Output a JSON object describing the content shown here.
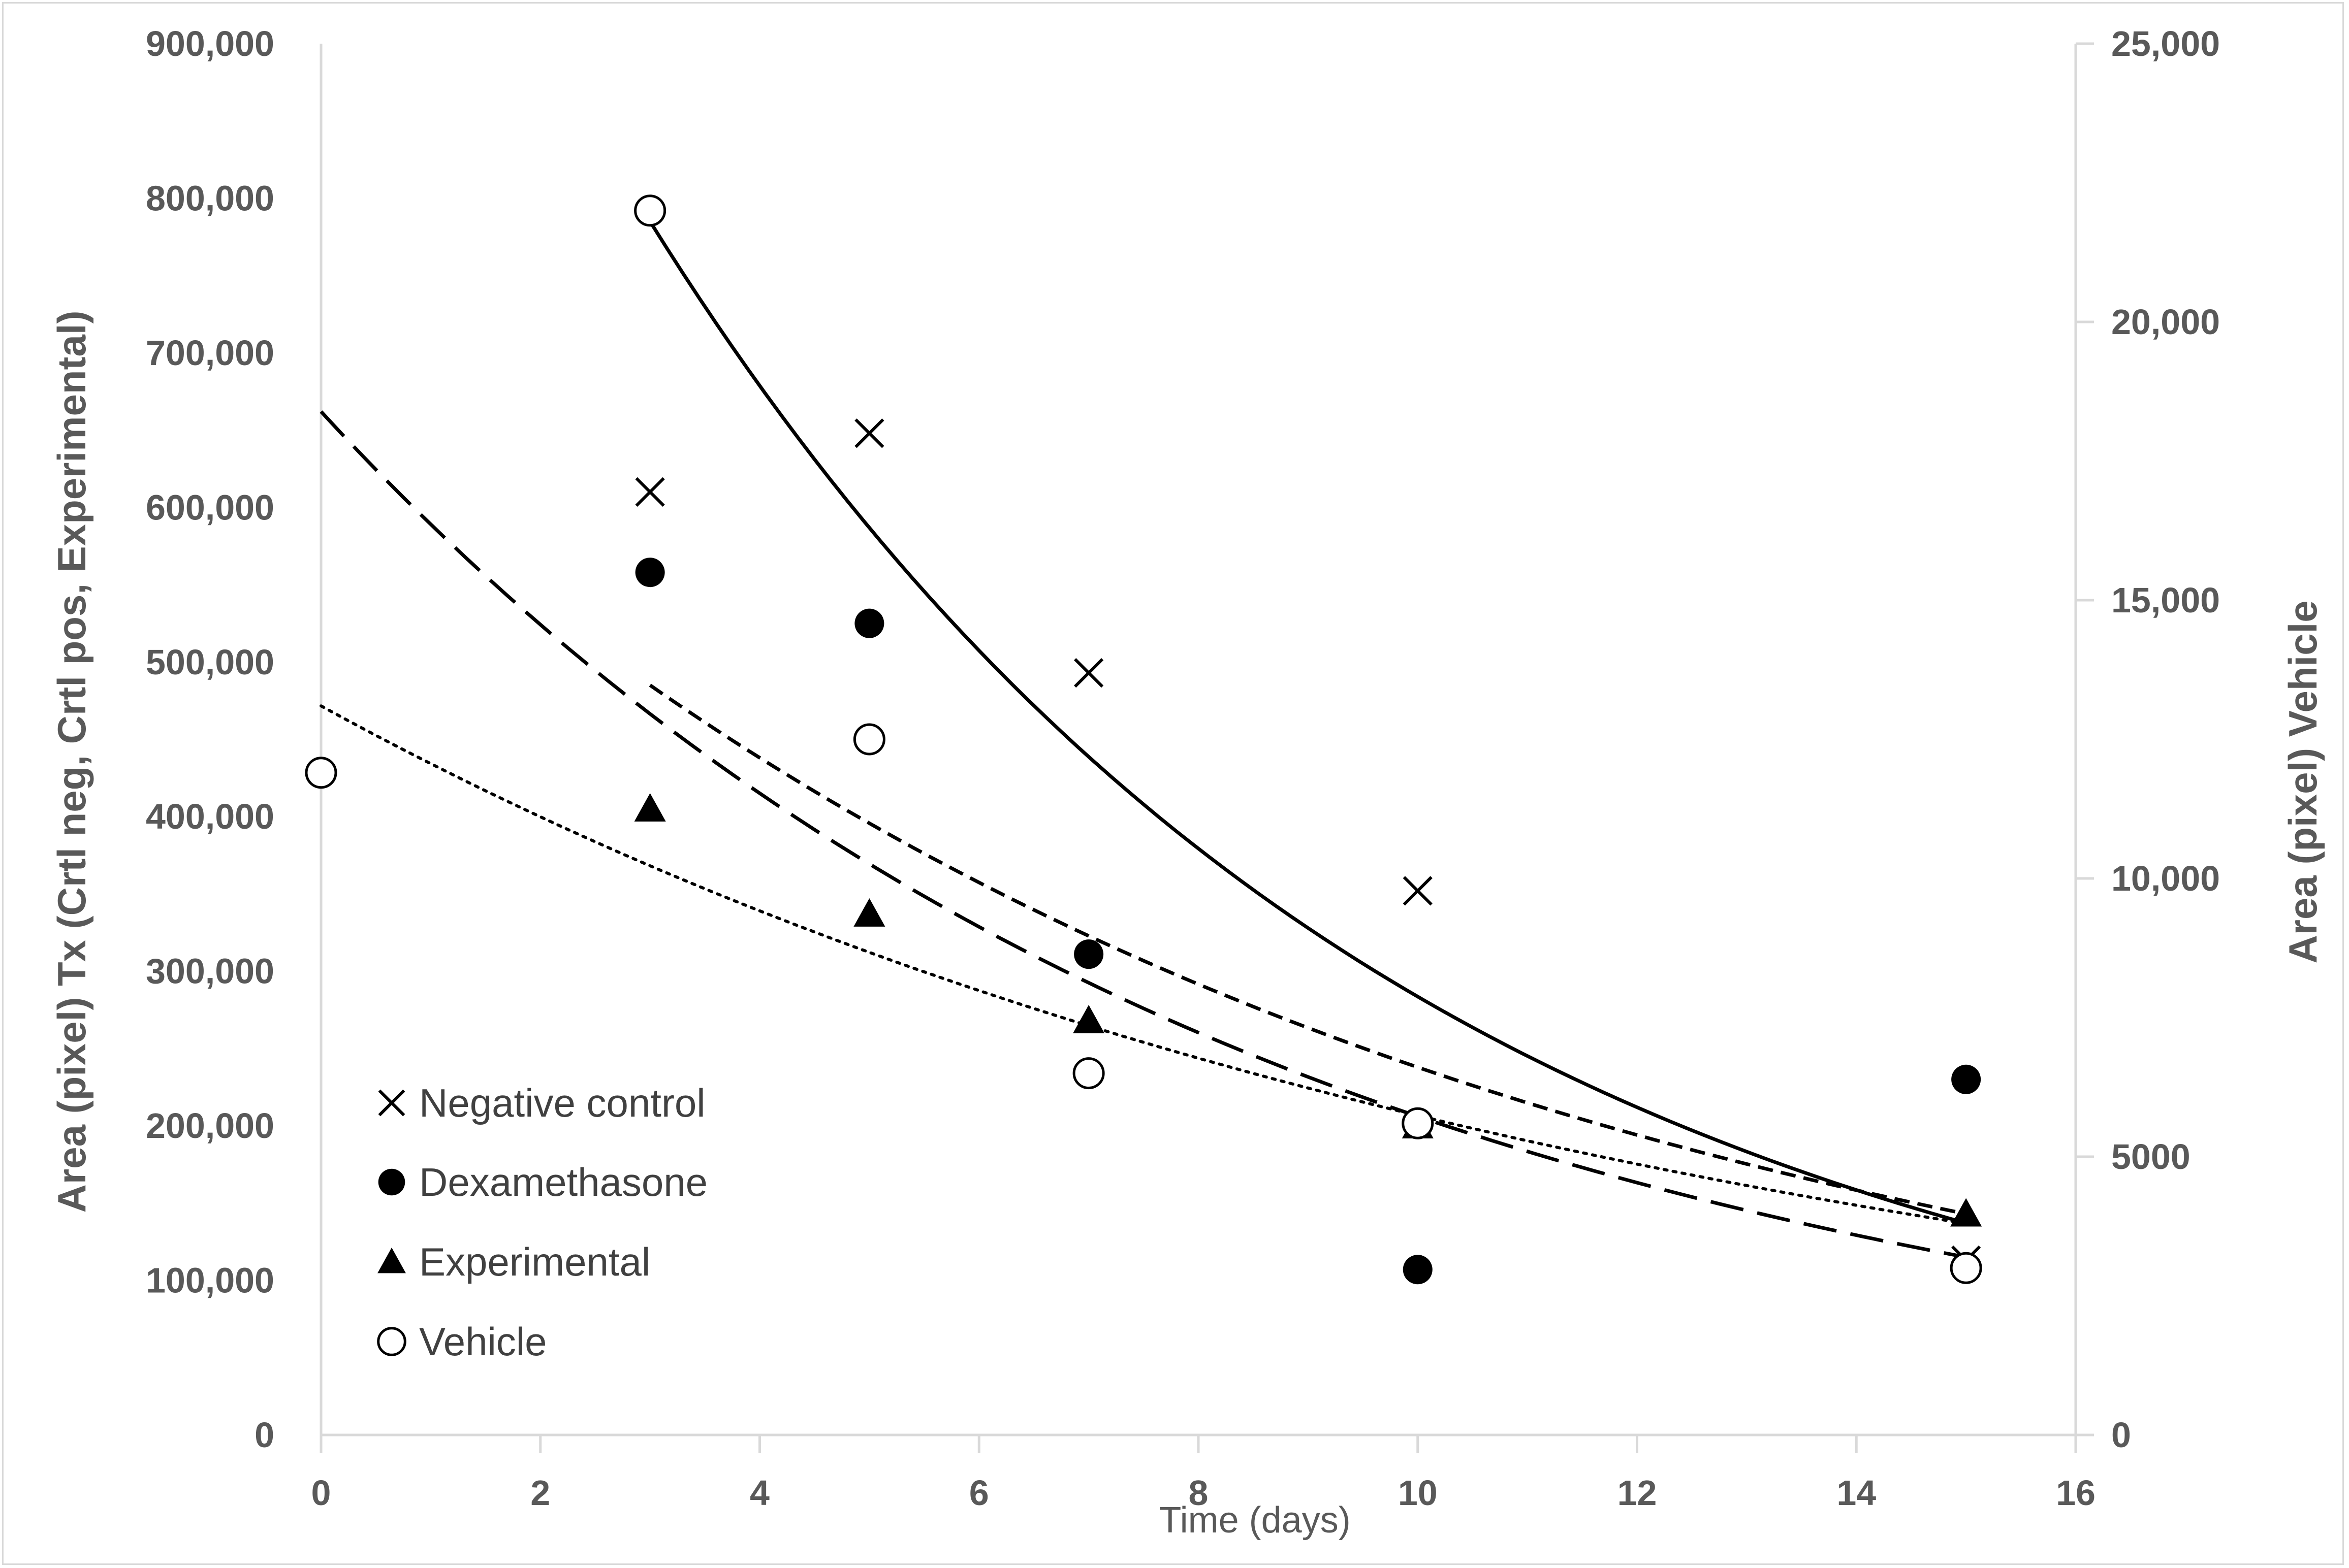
{
  "chart_data": {
    "type": "scatter",
    "title": "",
    "xlabel": "Time (days)",
    "ylabel_left": "Area (pixel) Tx (Crtl neg, Crtl pos, Experimental)",
    "ylabel_right": "Area (pixel) Vehicle",
    "xlim": [
      0,
      16
    ],
    "ylim_left": [
      0,
      900000
    ],
    "ylim_right": [
      0,
      25000
    ],
    "x_ticks": [
      0,
      2,
      4,
      6,
      8,
      10,
      12,
      14,
      16
    ],
    "y_ticks_left": [
      0,
      100000,
      200000,
      300000,
      400000,
      500000,
      600000,
      700000,
      800000,
      900000
    ],
    "y_tick_labels_left": [
      "0",
      "100,000",
      "200,000",
      "300,000",
      "400,000",
      "500,000",
      "600,000",
      "700,000",
      "800,000",
      "900,000"
    ],
    "y_ticks_right": [
      0,
      5000,
      10000,
      15000,
      20000,
      25000
    ],
    "y_tick_labels_right": [
      "0",
      "5000",
      "10,000",
      "15,000",
      "20,000",
      "25,000"
    ],
    "legend_position": "bottom-left",
    "series": [
      {
        "name": "Negative control",
        "marker": "x",
        "axis": "left",
        "x": [
          3,
          5,
          7,
          10,
          15
        ],
        "y": [
          610000,
          648000,
          493000,
          352000,
          113000
        ],
        "trendline": {
          "style": "solid",
          "x": [
            3,
            15
          ],
          "y0": 785000,
          "y1": 137000
        }
      },
      {
        "name": "Dexamethasone",
        "marker": "filled-circle",
        "axis": "left",
        "x": [
          3,
          5,
          7,
          10,
          15
        ],
        "y": [
          558000,
          525000,
          311000,
          107000,
          230000
        ],
        "trendline": {
          "style": "short-dash",
          "x": [
            3,
            15
          ],
          "y0": 485000,
          "y1": 143000
        }
      },
      {
        "name": "Experimental",
        "marker": "filled-triangle",
        "axis": "left",
        "x": [
          3,
          5,
          7,
          10,
          15
        ],
        "y": [
          405000,
          337000,
          268000,
          200000,
          143000
        ],
        "trendline": {
          "style": "long-dash",
          "x": [
            0,
            15
          ],
          "y0": 662000,
          "y1": 115000
        }
      },
      {
        "name": "Vehicle",
        "marker": "open-circle",
        "axis": "right",
        "x": [
          0,
          3,
          5,
          7,
          10,
          15
        ],
        "y": [
          11900,
          22000,
          12500,
          6500,
          5600,
          3000
        ],
        "trendline": {
          "style": "dotted",
          "x": [
            0,
            15
          ],
          "y0": 13100,
          "y1": 3800
        }
      }
    ]
  },
  "colors": {
    "axis_line": "#d9d9d9",
    "tick_text": "#595959",
    "marker": "#000000",
    "legend_text": "#404040"
  }
}
